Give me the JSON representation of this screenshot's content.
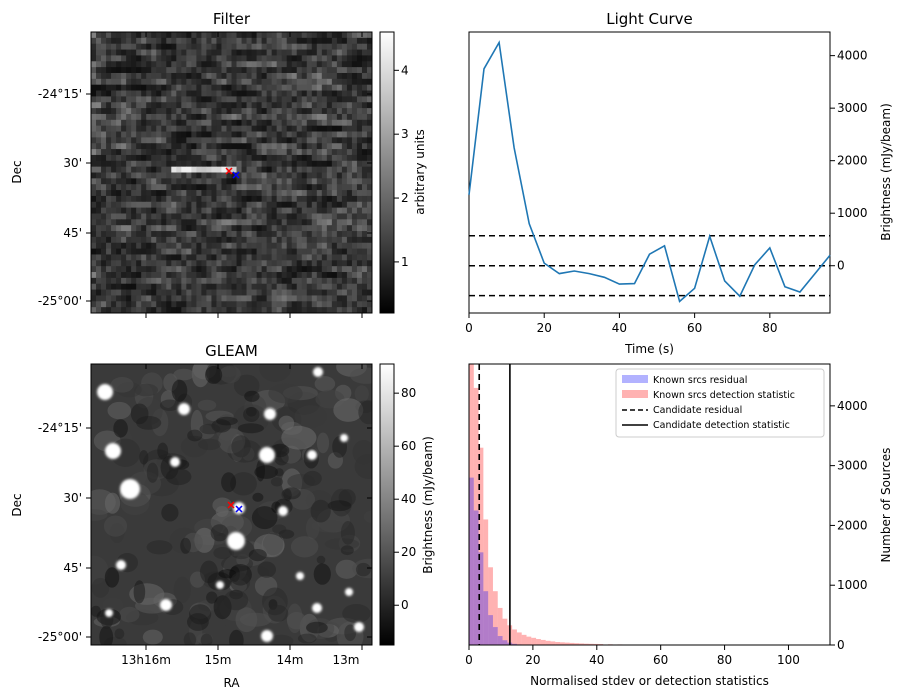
{
  "chart_data": [
    {
      "type": "heatmap",
      "panel": "filter",
      "title": "Filter",
      "ylabel": "Dec",
      "y_ticklabels": [
        "-24°15'",
        "30'",
        "45'",
        "-25°00'"
      ],
      "colorbar": {
        "label": "arbitrary units",
        "ticks": [
          1,
          2,
          3,
          4
        ],
        "range": [
          0.2,
          4.6
        ],
        "cmap": "gray"
      },
      "markers": [
        {
          "symbol": "x",
          "color": "#ff0000"
        },
        {
          "symbol": "x",
          "color": "#0000ff"
        }
      ]
    },
    {
      "type": "line",
      "panel": "light_curve",
      "title": "Light Curve",
      "xlabel": "Time (s)",
      "ylabel": "Brightness (mJy/beam)",
      "xlim": [
        0,
        96
      ],
      "ylim": [
        -900,
        4450
      ],
      "x_ticks": [
        0,
        20,
        40,
        60,
        80
      ],
      "y_ticks": [
        0,
        1000,
        2000,
        3000,
        4000
      ],
      "y_axis_side": "right",
      "series": [
        {
          "color": "#1f77b4",
          "x": [
            0,
            4,
            8,
            12,
            16,
            20,
            24,
            28,
            32,
            36,
            40,
            44,
            48,
            52,
            56,
            60,
            64,
            68,
            72,
            76,
            80,
            84,
            88,
            92,
            96
          ],
          "values": [
            1350,
            3750,
            4250,
            2250,
            800,
            50,
            -150,
            -100,
            -150,
            -220,
            -350,
            -340,
            220,
            380,
            -680,
            -430,
            560,
            -290,
            -580,
            20,
            340,
            -400,
            -500,
            -150,
            200
          ]
        }
      ],
      "hlines": [
        {
          "y": 570,
          "style": "dashed",
          "color": "#000000"
        },
        {
          "y": 0,
          "style": "dashed",
          "color": "#000000"
        },
        {
          "y": -570,
          "style": "dashed",
          "color": "#000000"
        }
      ]
    },
    {
      "type": "heatmap",
      "panel": "gleam",
      "title": "GLEAM",
      "xlabel": "RA",
      "ylabel": "Dec",
      "x_ticklabels": [
        "13h16m",
        "15m",
        "14m",
        "13m"
      ],
      "y_ticklabels": [
        "-24°15'",
        "30'",
        "45'",
        "-25°00'"
      ],
      "colorbar": {
        "label": "Brightness (mJy/beam)",
        "ticks": [
          0,
          20,
          40,
          60,
          80
        ],
        "range": [
          -15,
          91
        ],
        "cmap": "gray"
      },
      "markers": [
        {
          "symbol": "x",
          "color": "#ff0000"
        },
        {
          "symbol": "x",
          "color": "#0000ff"
        }
      ]
    },
    {
      "type": "bar",
      "panel": "histogram",
      "xlabel": "Normalised stdev or detection statistics",
      "ylabel": "Number of Sources",
      "xlim": [
        0,
        113
      ],
      "ylim": [
        0,
        4700
      ],
      "x_ticks": [
        0,
        20,
        40,
        60,
        80,
        100
      ],
      "y_ticks": [
        0,
        1000,
        2000,
        3000,
        4000
      ],
      "y_axis_side": "right",
      "legend_position": "top-right",
      "bin_width": 1.5,
      "series": [
        {
          "name": "Known srcs residual",
          "color": "#0000ff",
          "alpha": 0.3,
          "bin_starts": [
            0,
            1.5,
            3,
            4.5,
            6,
            7.5,
            9,
            10.5,
            12,
            13.5,
            15
          ],
          "values": [
            2800,
            2250,
            1550,
            900,
            500,
            300,
            150,
            80,
            40,
            20,
            10
          ]
        },
        {
          "name": "Known srcs detection statistic",
          "color": "#ff0000",
          "alpha": 0.3,
          "bin_starts": [
            0,
            1.5,
            3,
            4.5,
            6,
            7.5,
            9,
            10.5,
            12,
            13.5,
            15,
            16.5,
            18,
            19.5,
            21,
            22.5,
            24,
            25.5,
            27,
            28.5,
            30,
            31.5,
            33,
            34.5,
            36,
            37.5,
            39,
            40.5,
            43.5,
            46.5,
            49.5,
            55.5,
            61.5,
            67.5,
            79.5,
            91.5
          ],
          "values": [
            4700,
            4300,
            3300,
            2100,
            1300,
            900,
            620,
            440,
            330,
            260,
            210,
            170,
            140,
            120,
            100,
            85,
            70,
            60,
            50,
            45,
            40,
            35,
            30,
            26,
            22,
            20,
            18,
            16,
            12,
            10,
            8,
            6,
            5,
            4,
            3,
            2
          ]
        }
      ],
      "vlines": [
        {
          "name": "Candidate residual",
          "x": 3.2,
          "style": "dashed",
          "color": "#000000"
        },
        {
          "name": "Candidate detection statistic",
          "x": 12.8,
          "style": "solid",
          "color": "#000000"
        }
      ]
    }
  ]
}
